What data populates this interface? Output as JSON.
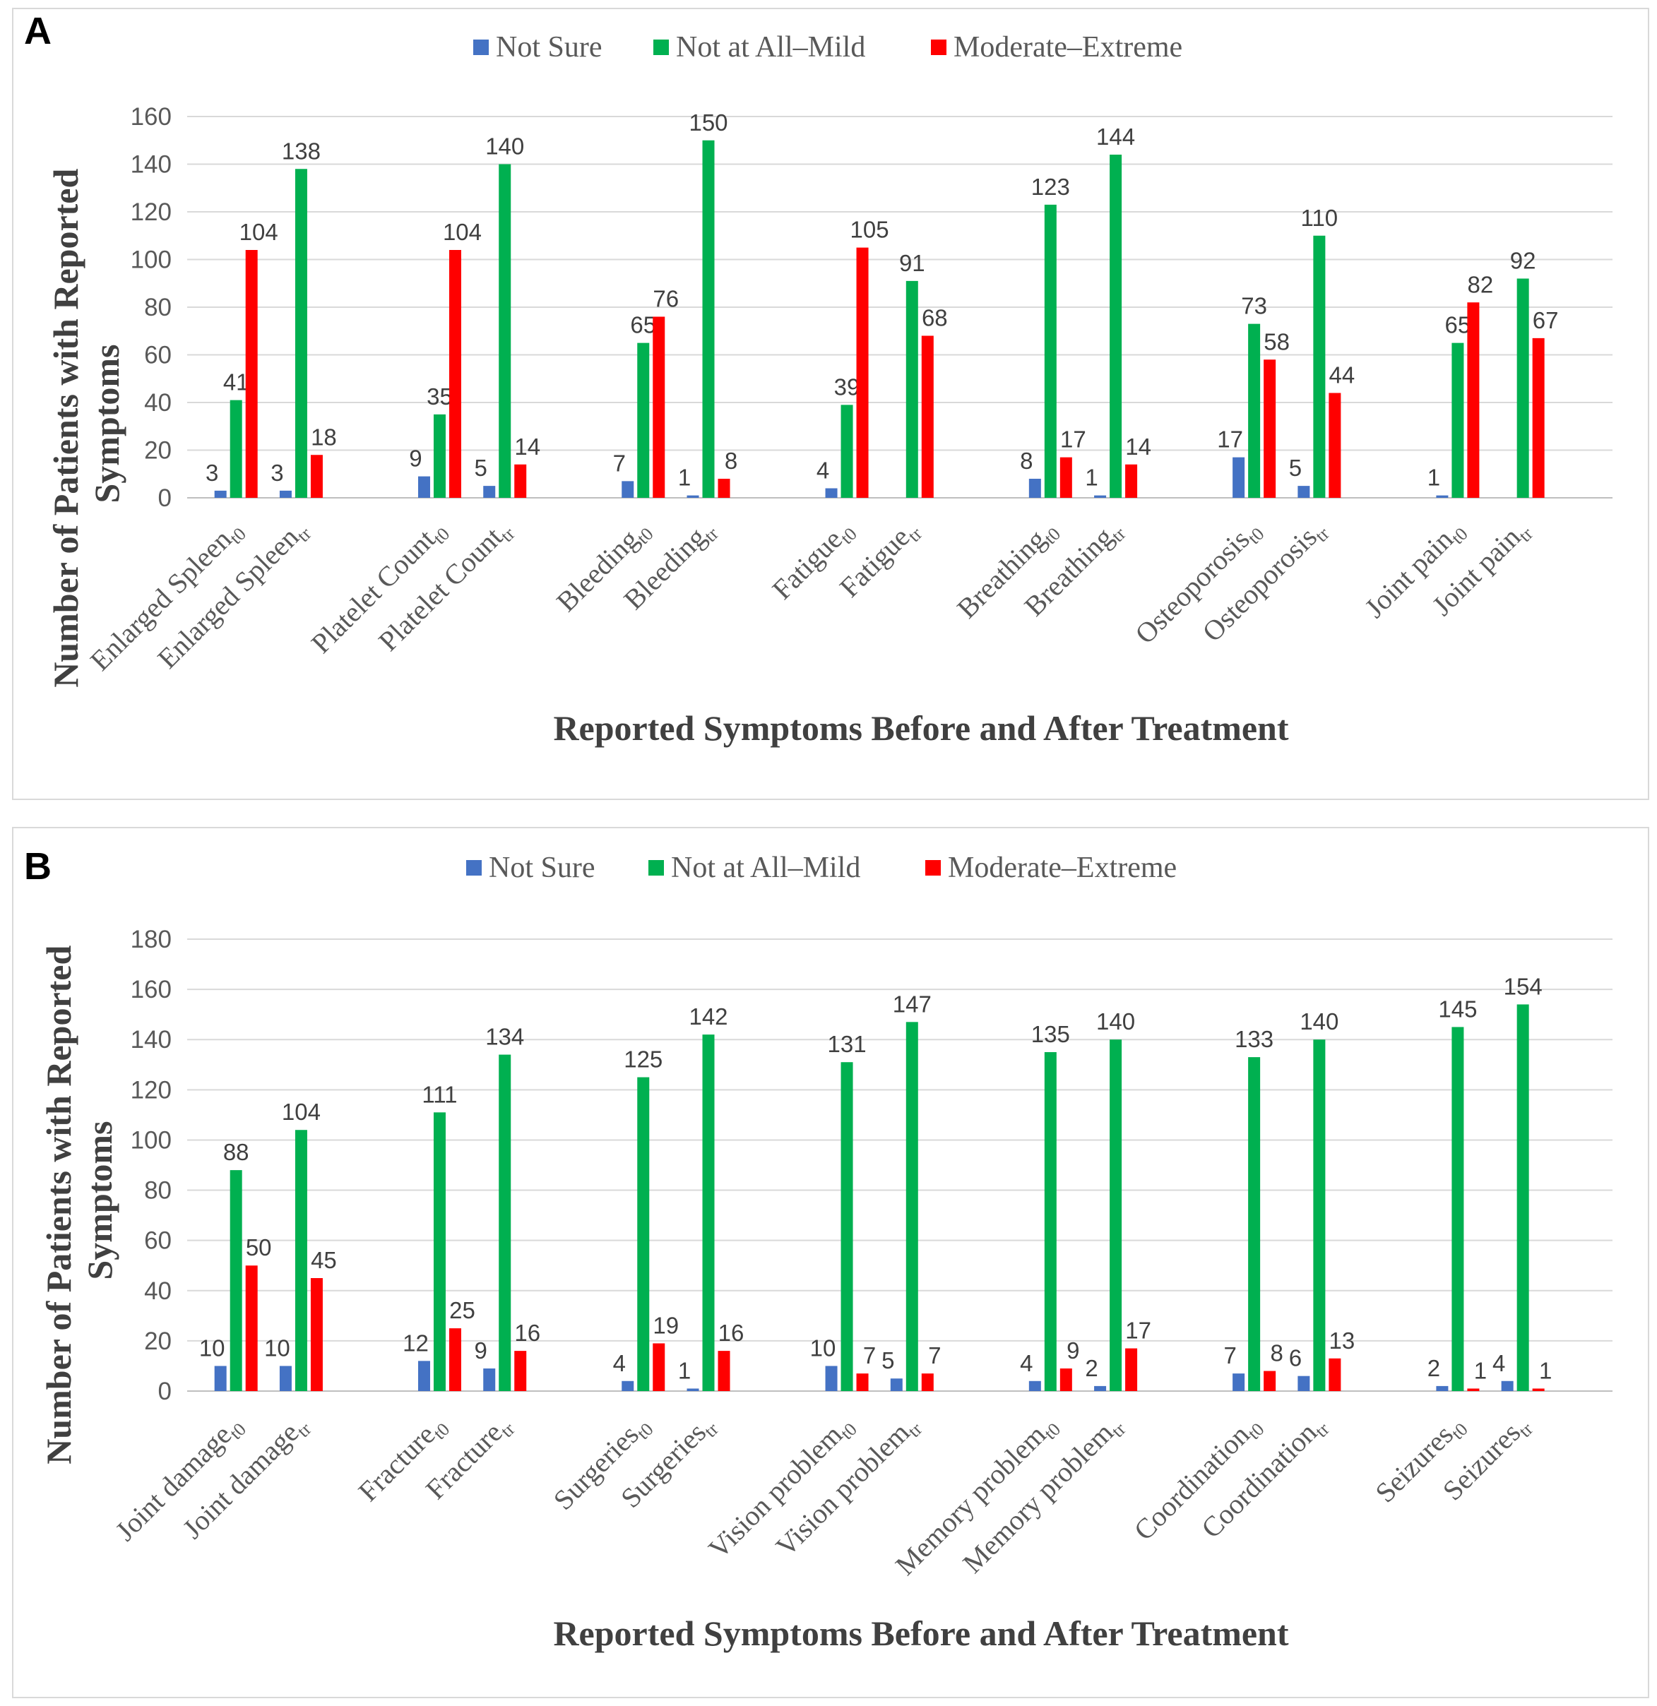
{
  "colors": {
    "not_sure": "#4472C4",
    "mild": "#00B050",
    "moderate": "#FF0000"
  },
  "chart_data": [
    {
      "panel": "A",
      "type": "bar",
      "legend": [
        "Not Sure",
        "Not at All–Mild",
        "Moderate–Extreme"
      ],
      "legend_position": "top-center",
      "xlabel": "Reported Symptoms Before and After Treatment",
      "ylabel": [
        "Number of Patients with Reported",
        "Symptoms"
      ],
      "ylim": [
        0,
        160
      ],
      "yticks": [
        "0",
        "20",
        "40",
        "60",
        "80",
        "100",
        "120",
        "140",
        "160"
      ],
      "grid": true,
      "categories": [
        {
          "name": "Enlarged Spleen",
          "sub": "t0"
        },
        {
          "name": "Enlarged Spleen",
          "sub": "tr"
        },
        {
          "name": "Platelet Count",
          "sub": "t0"
        },
        {
          "name": "Platelet Count",
          "sub": "tr"
        },
        {
          "name": "Bleeding",
          "sub": "t0"
        },
        {
          "name": "Bleeding",
          "sub": "tr"
        },
        {
          "name": "Fatigue",
          "sub": "t0"
        },
        {
          "name": "Fatigue",
          "sub": "tr"
        },
        {
          "name": "Breathing",
          "sub": "t0"
        },
        {
          "name": "Breathing",
          "sub": "tr"
        },
        {
          "name": "Osteoporosis",
          "sub": "t0"
        },
        {
          "name": "Osteoporosis",
          "sub": "tr"
        },
        {
          "name": "Joint pain",
          "sub": "t0"
        },
        {
          "name": "Joint pain",
          "sub": "tr"
        }
      ],
      "series": [
        {
          "name": "Not Sure",
          "values": [
            3,
            3,
            9,
            5,
            7,
            1,
            4,
            0,
            8,
            1,
            17,
            5,
            1,
            0
          ],
          "labels": [
            "3",
            "3",
            "9",
            "5",
            "7",
            "1",
            "4",
            "",
            "8",
            "1",
            "17",
            "5",
            "1",
            ""
          ]
        },
        {
          "name": "Not at All–Mild",
          "values": [
            41,
            138,
            35,
            140,
            65,
            150,
            39,
            91,
            123,
            144,
            73,
            110,
            65,
            92
          ],
          "labels": [
            "41",
            "138",
            "35",
            "140",
            "65",
            "150",
            "39",
            "91",
            "123",
            "144",
            "73",
            "110",
            "65",
            "92"
          ]
        },
        {
          "name": "Moderate–Extreme",
          "values": [
            104,
            18,
            104,
            14,
            76,
            8,
            105,
            68,
            17,
            14,
            58,
            44,
            82,
            67
          ],
          "labels": [
            "104",
            "18",
            "104",
            "14",
            "76",
            "8",
            "105",
            "68",
            "17",
            "14",
            "58",
            "44",
            "82",
            "67"
          ]
        }
      ]
    },
    {
      "panel": "B",
      "type": "bar",
      "legend": [
        "Not Sure",
        "Not at All–Mild",
        "Moderate–Extreme"
      ],
      "legend_position": "top-center",
      "xlabel": "Reported Symptoms Before and After Treatment",
      "ylabel": [
        "Number of Patients with Reported",
        "Symptoms"
      ],
      "ylim": [
        0,
        180
      ],
      "yticks": [
        "0",
        "20",
        "40",
        "60",
        "80",
        "100",
        "120",
        "140",
        "160",
        "180"
      ],
      "grid": true,
      "categories": [
        {
          "name": "Joint damage",
          "sub": "t0"
        },
        {
          "name": "Joint damage",
          "sub": "tr"
        },
        {
          "name": "Fracture",
          "sub": "t0"
        },
        {
          "name": "Fracture",
          "sub": "tr"
        },
        {
          "name": "Surgeries",
          "sub": "t0"
        },
        {
          "name": "Surgeries",
          "sub": "tr"
        },
        {
          "name": "Vision problem",
          "sub": "t0"
        },
        {
          "name": "Vision problem",
          "sub": "tr"
        },
        {
          "name": "Memory problem",
          "sub": "t0"
        },
        {
          "name": "Memory problem",
          "sub": "tr"
        },
        {
          "name": "Coordination",
          "sub": "t0"
        },
        {
          "name": "Coordination",
          "sub": "tr"
        },
        {
          "name": "Seizures",
          "sub": "t0"
        },
        {
          "name": "Seizures",
          "sub": "tr"
        }
      ],
      "series": [
        {
          "name": "Not Sure",
          "values": [
            10,
            10,
            12,
            9,
            4,
            1,
            10,
            5,
            4,
            2,
            7,
            6,
            2,
            4
          ],
          "labels": [
            "10",
            "10",
            "12",
            "9",
            "4",
            "1",
            "10",
            "5",
            "4",
            "2",
            "7",
            "6",
            "2",
            "4"
          ]
        },
        {
          "name": "Not at All–Mild",
          "values": [
            88,
            104,
            111,
            134,
            125,
            142,
            131,
            147,
            135,
            140,
            133,
            140,
            145,
            154
          ],
          "labels": [
            "88",
            "104",
            "111",
            "134",
            "125",
            "142",
            "131",
            "147",
            "135",
            "140",
            "133",
            "140",
            "145",
            "154"
          ]
        },
        {
          "name": "Moderate–Extreme",
          "values": [
            50,
            45,
            25,
            16,
            19,
            16,
            7,
            7,
            9,
            17,
            8,
            13,
            1,
            1
          ],
          "labels": [
            "50",
            "45",
            "25",
            "16",
            "19",
            "16",
            "7",
            "7",
            "9",
            "17",
            "8",
            "13",
            "1",
            "1"
          ]
        }
      ]
    }
  ]
}
